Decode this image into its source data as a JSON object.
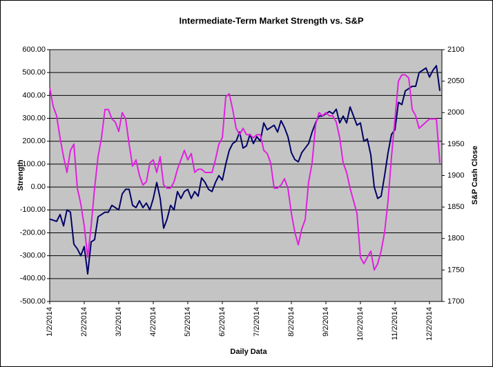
{
  "chart_data": {
    "type": "line",
    "title": "Intermediate-Term Market Strength vs. S&P",
    "x_label": "Daily Data",
    "y_label": "Strength",
    "y2_label": "S&P Cash Close",
    "categories": [
      "1/2/2014",
      null,
      null,
      null,
      null,
      null,
      null,
      null,
      null,
      null,
      "2/2/2014",
      null,
      null,
      null,
      null,
      null,
      null,
      null,
      null,
      null,
      "3/2/2014",
      null,
      null,
      null,
      null,
      null,
      null,
      null,
      null,
      null,
      "4/2/2014",
      null,
      null,
      null,
      null,
      null,
      null,
      null,
      null,
      null,
      "5/2/2014",
      null,
      null,
      null,
      null,
      null,
      null,
      null,
      null,
      null,
      "6/2/2014",
      null,
      null,
      null,
      null,
      null,
      null,
      null,
      null,
      null,
      "7/2/2014",
      null,
      null,
      null,
      null,
      null,
      null,
      null,
      null,
      null,
      "8/2/2014",
      null,
      null,
      null,
      null,
      null,
      null,
      null,
      null,
      null,
      "9/2/2014",
      null,
      null,
      null,
      null,
      null,
      null,
      null,
      null,
      null,
      "10/2/2014",
      null,
      null,
      null,
      null,
      null,
      null,
      null,
      null,
      null,
      "11/2/2014",
      null,
      null,
      null,
      null,
      null,
      null,
      null,
      null,
      null,
      "12/2/2014",
      null,
      null,
      null
    ],
    "series": [
      {
        "color": "#000066",
        "axis": "y",
        "values": [
          -140,
          -145,
          -150,
          -120,
          -170,
          -100,
          -110,
          -250,
          -270,
          -300,
          -260,
          -380,
          -240,
          -230,
          -130,
          -120,
          -110,
          -110,
          -80,
          -90,
          -100,
          -30,
          -10,
          -10,
          -80,
          -90,
          -60,
          -90,
          -70,
          -100,
          -50,
          20,
          -50,
          -180,
          -140,
          -80,
          -100,
          -20,
          -50,
          -20,
          -10,
          -50,
          -20,
          -40,
          40,
          20,
          -10,
          -20,
          20,
          50,
          30,
          100,
          160,
          190,
          200,
          240,
          170,
          180,
          230,
          190,
          220,
          200,
          280,
          250,
          260,
          270,
          240,
          290,
          260,
          220,
          150,
          120,
          110,
          150,
          170,
          190,
          240,
          280,
          310,
          310,
          320,
          330,
          320,
          340,
          280,
          310,
          280,
          350,
          310,
          270,
          280,
          200,
          210,
          140,
          0,
          -50,
          -40,
          50,
          150,
          230,
          250,
          370,
          360,
          420,
          430,
          440,
          440,
          500,
          510,
          520,
          480,
          510,
          530,
          420
        ]
      },
      {
        "color": "#e020e0",
        "axis": "y2",
        "values": [
          2040,
          2010,
          1995,
          1960,
          1930,
          1905,
          1940,
          1950,
          1880,
          1855,
          1820,
          1770,
          1820,
          1880,
          1930,
          1960,
          2005,
          2005,
          1990,
          1985,
          1970,
          2000,
          1990,
          1950,
          1915,
          1925,
          1900,
          1885,
          1890,
          1920,
          1925,
          1905,
          1930,
          1885,
          1880,
          1880,
          1890,
          1910,
          1925,
          1940,
          1925,
          1935,
          1905,
          1910,
          1910,
          1905,
          1905,
          1905,
          1925,
          1950,
          1960,
          2025,
          2030,
          2005,
          1975,
          1965,
          1975,
          1965,
          1965,
          1960,
          1965,
          1965,
          1940,
          1935,
          1920,
          1880,
          1880,
          1885,
          1895,
          1880,
          1840,
          1810,
          1790,
          1815,
          1830,
          1890,
          1920,
          1980,
          2000,
          1995,
          2000,
          1995,
          1995,
          1985,
          1960,
          1920,
          1905,
          1880,
          1860,
          1840,
          1770,
          1760,
          1770,
          1780,
          1750,
          1760,
          1780,
          1810,
          1860,
          1930,
          1990,
          2050,
          2060,
          2060,
          2055,
          2005,
          1995,
          1975,
          1980,
          1985,
          1990,
          1990,
          1990,
          1920
        ]
      }
    ],
    "ylim": [
      -500,
      600
    ],
    "yticks": [
      {
        "value": -500,
        "label": "-500.00"
      },
      {
        "value": -400,
        "label": "-400.00"
      },
      {
        "value": -300,
        "label": "-300.00"
      },
      {
        "value": -200,
        "label": "-200.00"
      },
      {
        "value": -100,
        "label": "-100.00"
      },
      {
        "value": 0,
        "label": "0.00"
      },
      {
        "value": 100,
        "label": "100.00"
      },
      {
        "value": 200,
        "label": "200.00"
      },
      {
        "value": 300,
        "label": "300.00"
      },
      {
        "value": 400,
        "label": "400.00"
      },
      {
        "value": 500,
        "label": "500.00"
      },
      {
        "value": 600,
        "label": "600.00"
      }
    ],
    "y2lim": [
      1700,
      2100
    ],
    "y2ticks": [
      1700,
      1750,
      1800,
      1850,
      1900,
      1950,
      2000,
      2050,
      2100
    ],
    "grid": true
  }
}
